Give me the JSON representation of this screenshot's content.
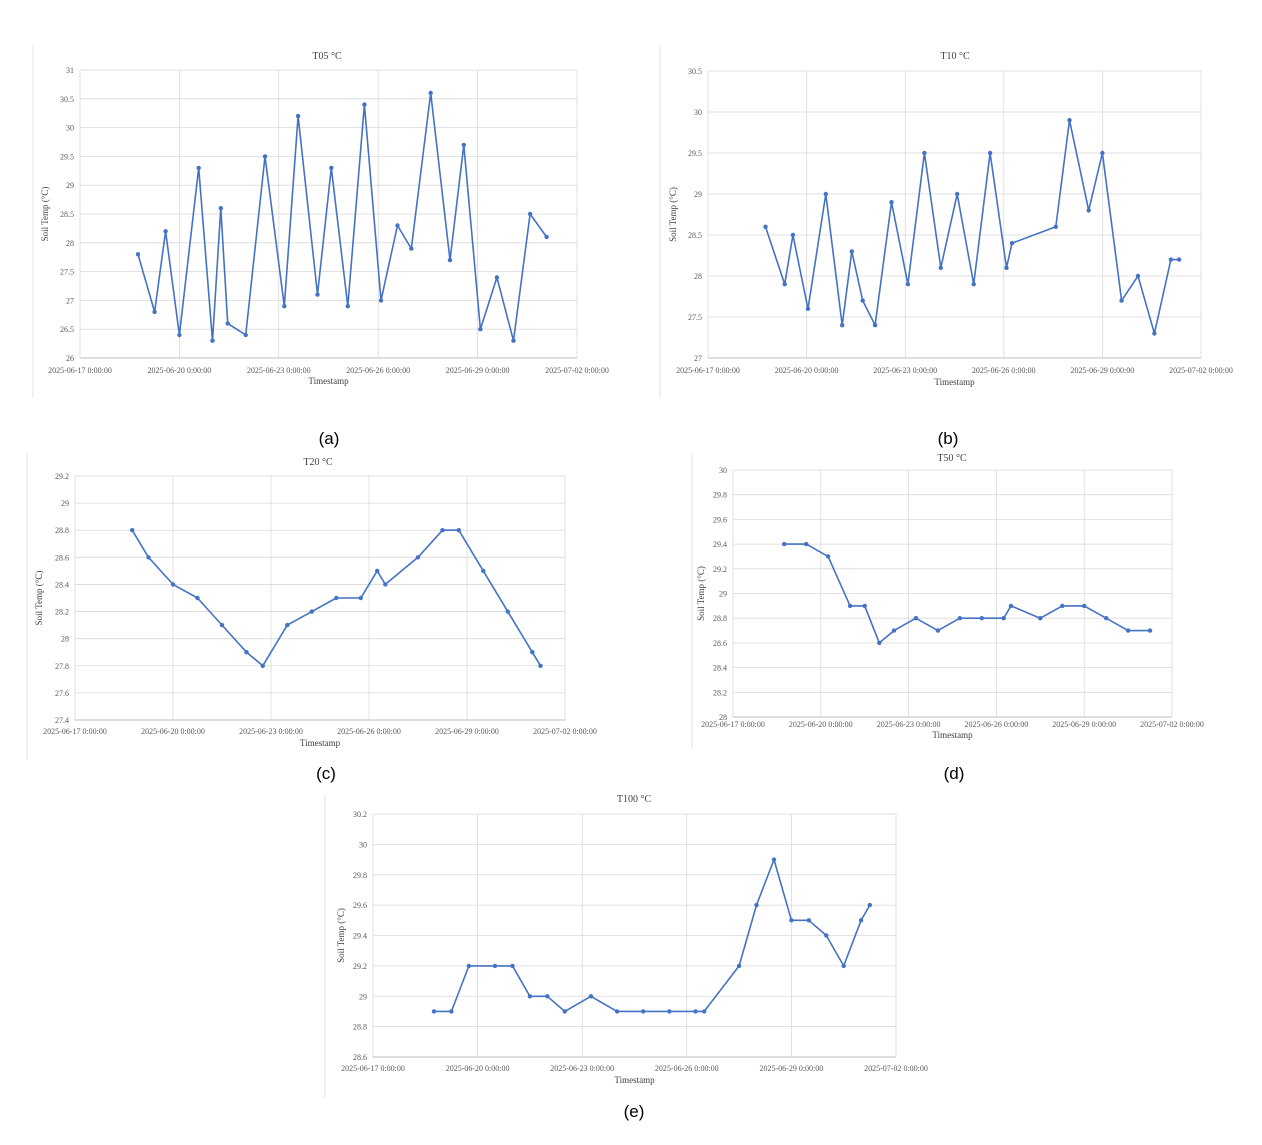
{
  "chart_data": [
    {
      "type": "line",
      "title": "T05 °C",
      "caption": "(a)",
      "xlabel": "Timestamp",
      "ylabel": "Soil Temp (°C)",
      "ylim": [
        26,
        31
      ],
      "yticks": [
        26,
        26.5,
        27,
        27.5,
        28,
        28.5,
        29,
        29.5,
        30,
        30.5,
        31
      ],
      "xlim_days": [
        0,
        15
      ],
      "xticks": [
        "2025-06-17 0:00:00",
        "2025-06-20 0:00:00",
        "2025-06-23 0:00:00",
        "2025-06-26 0:00:00",
        "2025-06-29 0:00:00",
        "2025-07-02 0:00:00"
      ],
      "grid": true,
      "series_color": "#4472c4",
      "series": [
        {
          "x": [
            "2025-06-18 18:00",
            "2025-06-19 06:00",
            "2025-06-19 14:00",
            "2025-06-20 00:00",
            "2025-06-20 14:00",
            "2025-06-21 00:00",
            "2025-06-21 06:00",
            "2025-06-21 11:00",
            "2025-06-22 00:00",
            "2025-06-22 14:00",
            "2025-06-23 04:00",
            "2025-06-23 14:00",
            "2025-06-24 04:00",
            "2025-06-24 14:00",
            "2025-06-25 02:00",
            "2025-06-25 14:00",
            "2025-06-26 02:00",
            "2025-06-26 14:00",
            "2025-06-27 00:00",
            "2025-06-27 14:00",
            "2025-06-28 04:00",
            "2025-06-28 14:00",
            "2025-06-29 02:00",
            "2025-06-29 14:00",
            "2025-06-30 02:00",
            "2025-06-30 14:00",
            "2025-07-01 02:00"
          ],
          "y": [
            27.8,
            26.8,
            28.2,
            26.4,
            29.3,
            26.3,
            28.6,
            26.6,
            26.4,
            29.5,
            26.9,
            30.2,
            27.1,
            29.3,
            26.9,
            30.4,
            27.0,
            28.3,
            27.9,
            30.6,
            27.7,
            29.7,
            26.5,
            27.4,
            26.3,
            28.5,
            28.1
          ]
        }
      ]
    },
    {
      "type": "line",
      "title": "T10 °C",
      "caption": "(b)",
      "xlabel": "Timestamp",
      "ylabel": "Soil Temp (°C)",
      "ylim": [
        27,
        30.5
      ],
      "yticks": [
        27,
        27.5,
        28,
        28.5,
        29,
        29.5,
        30,
        30.5
      ],
      "xlim_days": [
        0,
        15
      ],
      "xticks": [
        "2025-06-17 0:00:00",
        "2025-06-20 0:00:00",
        "2025-06-23 0:00:00",
        "2025-06-26 0:00:00",
        "2025-06-29 0:00:00",
        "2025-07-02 0:00:00"
      ],
      "grid": true,
      "series_color": "#4472c4",
      "series": [
        {
          "x": [
            "2025-06-18 18:00",
            "2025-06-19 08:00",
            "2025-06-19 14:00",
            "2025-06-20 01:00",
            "2025-06-20 14:00",
            "2025-06-21 02:00",
            "2025-06-21 09:00",
            "2025-06-21 17:00",
            "2025-06-22 02:00",
            "2025-06-22 14:00",
            "2025-06-23 02:00",
            "2025-06-23 14:00",
            "2025-06-24 02:00",
            "2025-06-24 14:00",
            "2025-06-25 02:00",
            "2025-06-25 14:00",
            "2025-06-26 02:00",
            "2025-06-26 06:00",
            "2025-06-27 14:00",
            "2025-06-28 00:00",
            "2025-06-28 14:00",
            "2025-06-29 00:00",
            "2025-06-29 14:00",
            "2025-06-30 02:00",
            "2025-06-30 14:00",
            "2025-07-01 02:00",
            "2025-07-01 08:00"
          ],
          "y": [
            28.6,
            27.9,
            28.5,
            27.6,
            29.0,
            27.4,
            28.3,
            27.7,
            27.4,
            28.9,
            27.9,
            29.5,
            28.1,
            29.0,
            27.9,
            29.5,
            28.1,
            28.4,
            28.6,
            29.9,
            28.8,
            29.5,
            27.7,
            28.0,
            27.3,
            28.2,
            28.2
          ]
        }
      ]
    },
    {
      "type": "line",
      "title": "T20 °C",
      "caption": "(c)",
      "xlabel": "Timestamp",
      "ylabel": "Soil Temp (°C)",
      "ylim": [
        27.4,
        29.2
      ],
      "yticks": [
        27.4,
        27.6,
        27.8,
        28,
        28.2,
        28.4,
        28.6,
        28.8,
        29,
        29.2
      ],
      "xlim_days": [
        0,
        15
      ],
      "xticks": [
        "2025-06-17 0:00:00",
        "2025-06-20 0:00:00",
        "2025-06-23 0:00:00",
        "2025-06-26 0:00:00",
        "2025-06-29 0:00:00",
        "2025-07-02 0:00:00"
      ],
      "grid": true,
      "series_color": "#4472c4",
      "series": [
        {
          "x": [
            "2025-06-18 18:00",
            "2025-06-19 06:00",
            "2025-06-20 00:00",
            "2025-06-20 18:00",
            "2025-06-21 12:00",
            "2025-06-22 06:00",
            "2025-06-22 18:00",
            "2025-06-23 12:00",
            "2025-06-24 06:00",
            "2025-06-25 00:00",
            "2025-06-25 18:00",
            "2025-06-26 06:00",
            "2025-06-26 12:00",
            "2025-06-27 12:00",
            "2025-06-28 06:00",
            "2025-06-28 18:00",
            "2025-06-29 12:00",
            "2025-06-30 06:00",
            "2025-07-01 00:00",
            "2025-07-01 06:00"
          ],
          "y": [
            28.8,
            28.6,
            28.4,
            28.3,
            28.1,
            27.9,
            27.8,
            28.1,
            28.2,
            28.3,
            28.3,
            28.5,
            28.4,
            28.6,
            28.8,
            28.8,
            28.5,
            28.2,
            27.9,
            27.8
          ]
        }
      ]
    },
    {
      "type": "line",
      "title": "T50 °C",
      "caption": "(d)",
      "xlabel": "Timestamp",
      "ylabel": "Soil Temp (°C)",
      "ylim": [
        28,
        30
      ],
      "yticks": [
        28,
        28.2,
        28.4,
        28.6,
        28.8,
        29,
        29.2,
        29.4,
        29.6,
        29.8,
        30
      ],
      "xlim_days": [
        0,
        15
      ],
      "xticks": [
        "2025-06-17 0:00:00",
        "2025-06-20 0:00:00",
        "2025-06-23 0:00:00",
        "2025-06-26 0:00:00",
        "2025-06-29 0:00:00",
        "2025-07-02 0:00:00"
      ],
      "grid": true,
      "series_color": "#4472c4",
      "series": [
        {
          "x": [
            "2025-06-18 18:00",
            "2025-06-19 12:00",
            "2025-06-20 06:00",
            "2025-06-21 00:00",
            "2025-06-21 12:00",
            "2025-06-22 00:00",
            "2025-06-22 12:00",
            "2025-06-23 06:00",
            "2025-06-24 00:00",
            "2025-06-24 18:00",
            "2025-06-25 12:00",
            "2025-06-26 06:00",
            "2025-06-26 12:00",
            "2025-06-27 12:00",
            "2025-06-28 06:00",
            "2025-06-29 00:00",
            "2025-06-29 18:00",
            "2025-06-30 12:00",
            "2025-07-01 06:00"
          ],
          "y": [
            29.4,
            29.4,
            29.3,
            28.9,
            28.9,
            28.6,
            28.7,
            28.8,
            28.7,
            28.8,
            28.8,
            28.8,
            28.9,
            28.8,
            28.9,
            28.9,
            28.8,
            28.7,
            28.7
          ]
        }
      ]
    },
    {
      "type": "line",
      "title": "T100 °C",
      "caption": "(e)",
      "xlabel": "Timestamp",
      "ylabel": "Soil Temp (°C)",
      "ylim": [
        28.6,
        30.2
      ],
      "yticks": [
        28.6,
        28.8,
        29,
        29.2,
        29.4,
        29.6,
        29.8,
        30,
        30.2
      ],
      "xlim_days": [
        0,
        15
      ],
      "xticks": [
        "2025-06-17 0:00:00",
        "2025-06-20 0:00:00",
        "2025-06-23 0:00:00",
        "2025-06-26 0:00:00",
        "2025-06-29 0:00:00",
        "2025-07-02 0:00:00"
      ],
      "grid": true,
      "series_color": "#4472c4",
      "series": [
        {
          "x": [
            "2025-06-18 18:00",
            "2025-06-19 06:00",
            "2025-06-19 18:00",
            "2025-06-20 12:00",
            "2025-06-21 00:00",
            "2025-06-21 12:00",
            "2025-06-22 00:00",
            "2025-06-22 12:00",
            "2025-06-23 06:00",
            "2025-06-24 00:00",
            "2025-06-24 18:00",
            "2025-06-25 12:00",
            "2025-06-26 06:00",
            "2025-06-26 12:00",
            "2025-06-27 12:00",
            "2025-06-28 00:00",
            "2025-06-28 12:00",
            "2025-06-29 00:00",
            "2025-06-29 12:00",
            "2025-06-30 00:00",
            "2025-06-30 12:00",
            "2025-07-01 00:00",
            "2025-07-01 06:00"
          ],
          "y": [
            28.9,
            28.9,
            29.2,
            29.2,
            29.2,
            29.0,
            29.0,
            28.9,
            29.0,
            28.9,
            28.9,
            28.9,
            28.9,
            28.9,
            29.2,
            29.6,
            29.9,
            29.5,
            29.5,
            29.4,
            29.2,
            29.5,
            29.6
          ]
        }
      ]
    }
  ]
}
